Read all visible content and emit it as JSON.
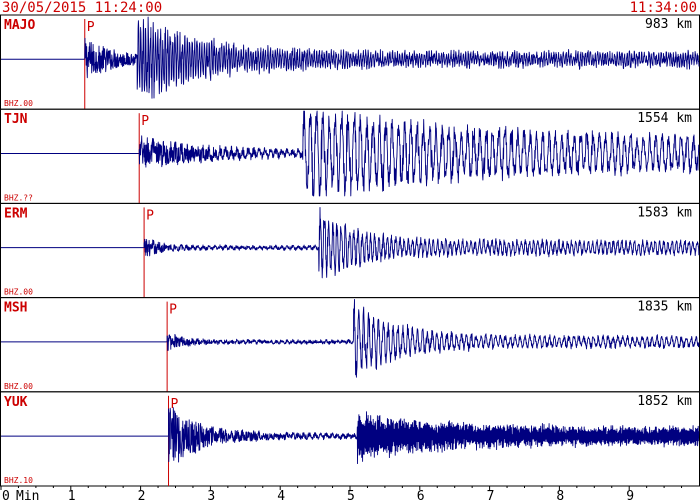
{
  "header": {
    "start_time": "30/05/2015 11:24:00",
    "end_time": "11:34:00"
  },
  "axis": {
    "unit": "Min",
    "ticks": [
      "0",
      "1",
      "2",
      "3",
      "4",
      "5",
      "6",
      "7",
      "8",
      "9"
    ]
  },
  "colors": {
    "text": "#cc0000",
    "trace": "#000080",
    "frame": "#000000"
  },
  "chart_data": {
    "type": "line",
    "title": "",
    "xlabel": "Min",
    "xlim": [
      0,
      10
    ],
    "series": [
      {
        "name": "MAJO",
        "distance": "983 km",
        "channel": "BHZ.00",
        "p_pick": "P",
        "p_arrival_min": 1.2,
        "s_arrival_min": 1.95,
        "noise": 0.09,
        "amp_p": 0.42,
        "amp_s": 0.95,
        "p_period": 0.02,
        "s_period": 0.035,
        "decay": 0.9,
        "coda": 0.16
      },
      {
        "name": "TJN",
        "distance": "1554 km",
        "channel": "BHZ.??",
        "p_pick": "P",
        "p_arrival_min": 1.98,
        "s_arrival_min": 4.32,
        "noise": 0.05,
        "amp_p": 0.35,
        "amp_s": 0.85,
        "p_period": 0.03,
        "s_period": 0.09,
        "decay": 2.0,
        "coda": 0.42
      },
      {
        "name": "ERM",
        "distance": "1583 km",
        "channel": "BHZ.00",
        "p_pick": "P",
        "p_arrival_min": 2.05,
        "s_arrival_min": 4.55,
        "noise": 0.04,
        "amp_p": 0.22,
        "amp_s": 0.8,
        "p_period": 0.025,
        "s_period": 0.06,
        "decay": 0.55,
        "coda": 0.18
      },
      {
        "name": "MSH",
        "distance": "1835 km",
        "channel": "BHZ.00",
        "p_pick": "P",
        "p_arrival_min": 2.38,
        "s_arrival_min": 5.05,
        "noise": 0.04,
        "amp_p": 0.2,
        "amp_s": 0.9,
        "p_period": 0.03,
        "s_period": 0.07,
        "decay": 0.6,
        "coda": 0.14
      },
      {
        "name": "YUK",
        "distance": "1852 km",
        "channel": "BHZ.10",
        "p_pick": "P",
        "p_arrival_min": 2.4,
        "s_arrival_min": 5.1,
        "noise": 0.05,
        "amp_p": 0.75,
        "amp_s": 0.4,
        "p_period": 0.008,
        "s_period": 0.012,
        "decay": 1.2,
        "coda": 0.22
      }
    ]
  }
}
